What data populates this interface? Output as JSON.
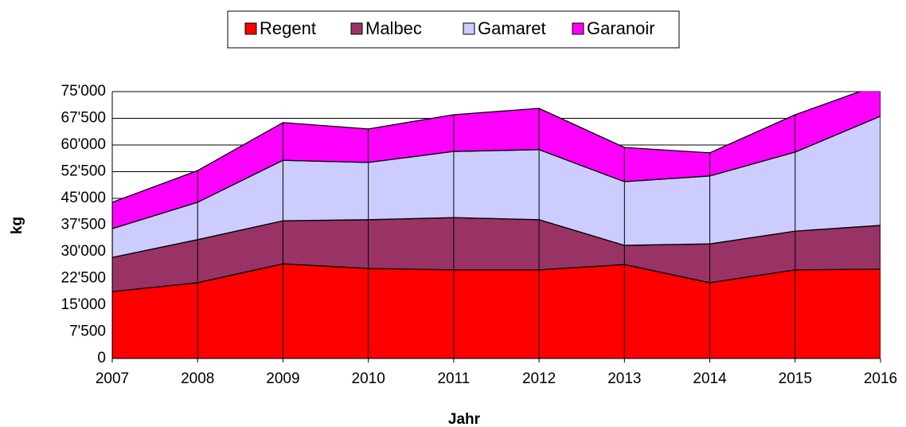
{
  "chart_data": {
    "type": "stacked-area",
    "x": [
      2007,
      2008,
      2009,
      2010,
      2011,
      2012,
      2013,
      2014,
      2015,
      2016
    ],
    "xlim": [
      2007,
      2016
    ],
    "xticks": [
      2007,
      2008,
      2009,
      2010,
      2011,
      2012,
      2013,
      2014,
      2015,
      2016
    ],
    "ylim": [
      0,
      75000
    ],
    "yticks": [
      0,
      {
        "value": 7500,
        "label": "7'500"
      },
      {
        "value": 15000,
        "label": "15'000"
      },
      {
        "value": 22500,
        "label": "22'500"
      },
      {
        "value": 30000,
        "label": "30'000"
      },
      {
        "value": 37500,
        "label": "37'500"
      },
      {
        "value": 45000,
        "label": "45'000"
      },
      {
        "value": 52500,
        "label": "52'500"
      },
      {
        "value": 60000,
        "label": "60'000"
      },
      {
        "value": 67500,
        "label": "67'500"
      },
      {
        "value": 75000,
        "label": "75'000"
      }
    ],
    "x_label": "Jahr",
    "y_label": "kg",
    "grid": true,
    "legend": "top",
    "series": [
      {
        "name": "Regent",
        "color": "#ff0000",
        "values": [
          18800,
          21300,
          26600,
          25300,
          24900,
          24900,
          26400,
          21300,
          24900,
          25100
        ]
      },
      {
        "name": "Malbec",
        "color": "#993366",
        "values": [
          9600,
          12100,
          12100,
          13700,
          14700,
          14100,
          5400,
          10900,
          10900,
          12300
        ]
      },
      {
        "name": "Gamaret",
        "color": "#ccccff",
        "values": [
          8100,
          10500,
          17000,
          16100,
          18600,
          19700,
          17900,
          19100,
          22200,
          30700
        ]
      },
      {
        "name": "Garanoir",
        "color": "#ff00ff",
        "values": [
          7400,
          8900,
          10600,
          9400,
          10300,
          11600,
          9600,
          6500,
          10500,
          9000
        ]
      }
    ]
  }
}
